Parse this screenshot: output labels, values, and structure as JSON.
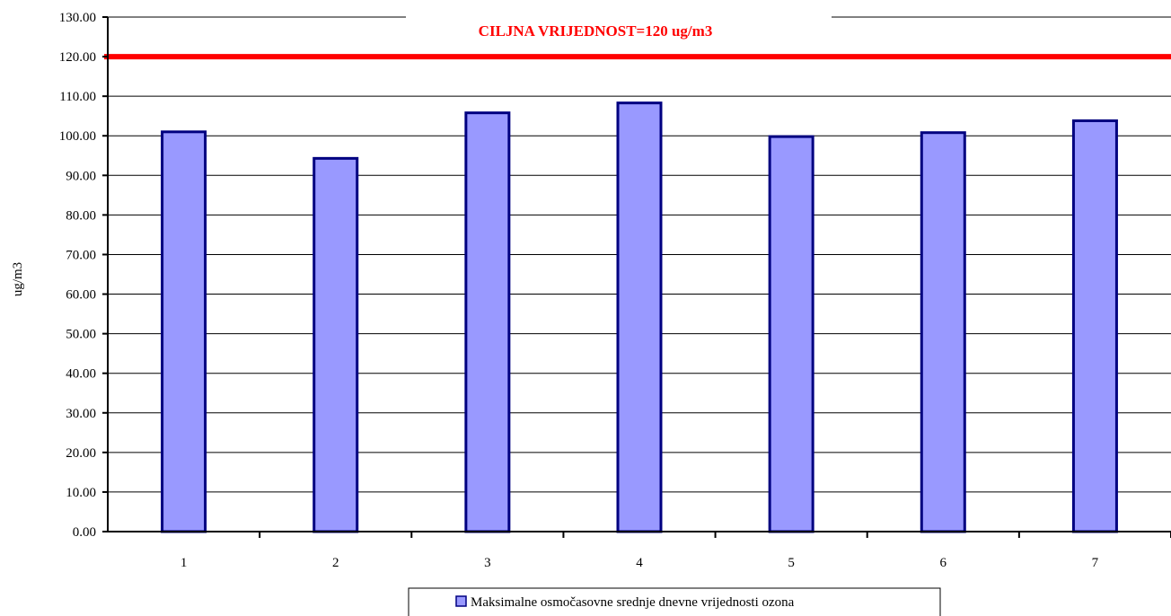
{
  "chart_data": {
    "type": "bar",
    "categories": [
      "1",
      "2",
      "3",
      "4",
      "5",
      "6",
      "7"
    ],
    "series": [
      {
        "name": "Maksimalne osmočasovne srednje dnevne vrijednosti ozona",
        "values": [
          101.0,
          94.3,
          105.8,
          108.3,
          99.8,
          100.8,
          103.8
        ],
        "color": "#9999ff",
        "border_color": "#000080"
      }
    ],
    "ylabel": "ug/m3",
    "xlabel": "",
    "ylim": [
      0,
      130
    ],
    "y_step": 10,
    "y_tick_labels": [
      "0.00",
      "10.00",
      "20.00",
      "30.00",
      "40.00",
      "50.00",
      "60.00",
      "70.00",
      "80.00",
      "90.00",
      "100.00",
      "110.00",
      "120.00",
      "130.00"
    ],
    "grid": true,
    "legend_position": "bottom",
    "target_line": {
      "value": 120,
      "label": "CILJNA VRIJEDNOST=120 ug/m3",
      "color": "#ff0000"
    }
  }
}
